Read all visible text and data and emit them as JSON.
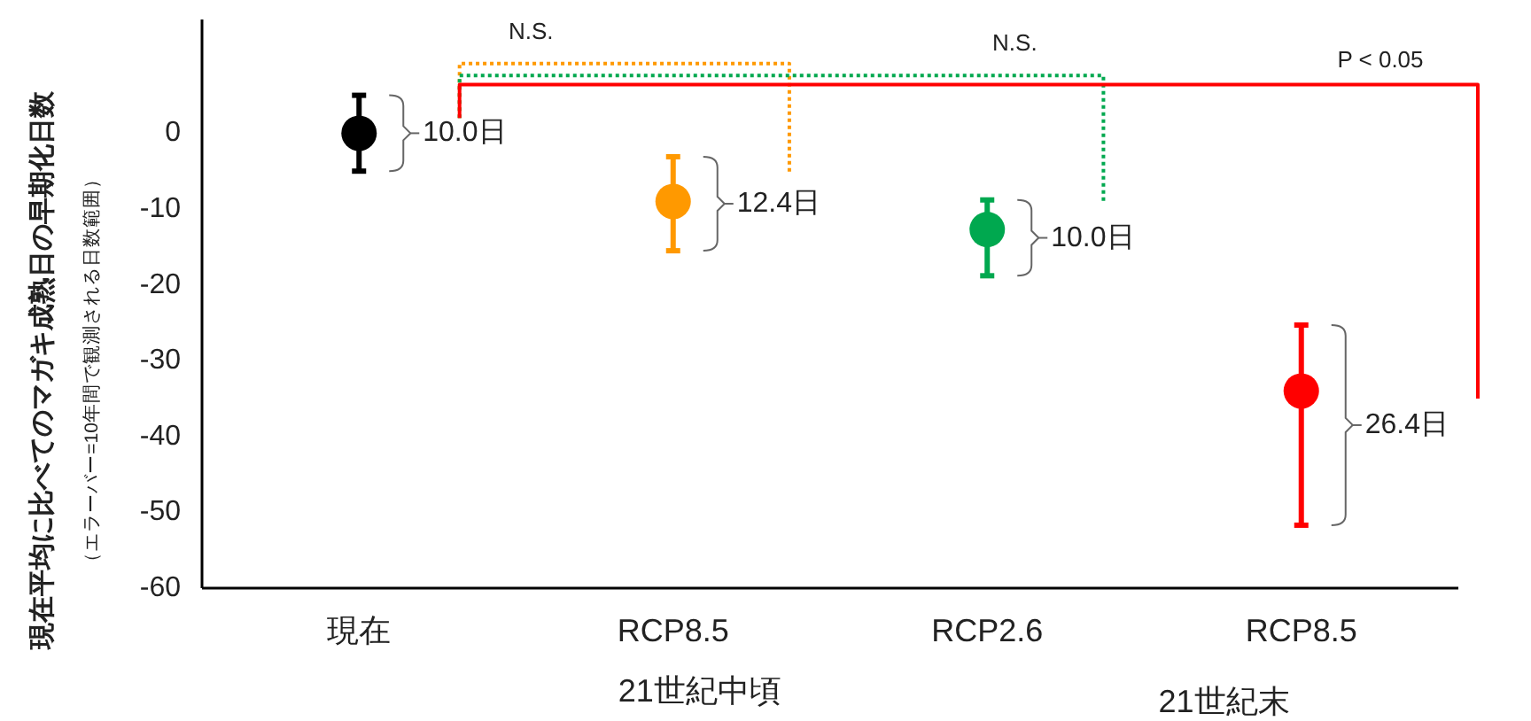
{
  "chart_data": {
    "type": "scatter",
    "ylabel": "現在平均に比べてのマガキ成熟日の早期化日数",
    "categories": [
      "現在",
      "RCP8.5",
      "RCP2.6",
      "RCP8.5"
    ],
    "values": [
      0,
      -9,
      -12.7,
      -34
    ],
    "colors": [
      "#000000",
      "#ff9900",
      "#00a84f",
      "#ff0000"
    ],
    "errors": [
      [
        -5,
        5
      ],
      [
        -15.5,
        -3.1
      ],
      [
        -18.8,
        -8.8
      ],
      [
        -51.7,
        -25.3
      ]
    ],
    "marker": "circle",
    "ylim": [
      -60,
      15
    ],
    "yticks": [
      0,
      -10,
      -20,
      -30,
      -40,
      -50,
      -60
    ],
    "annotations": [
      "（エラーバー=10年間で観測される日数範囲）",
      "N.S.",
      "N.S.",
      "P < 0.05",
      "21世紀中頃",
      "21世紀末",
      "10.0日",
      "12.4日",
      "10.0日",
      "26.4日"
    ]
  }
}
